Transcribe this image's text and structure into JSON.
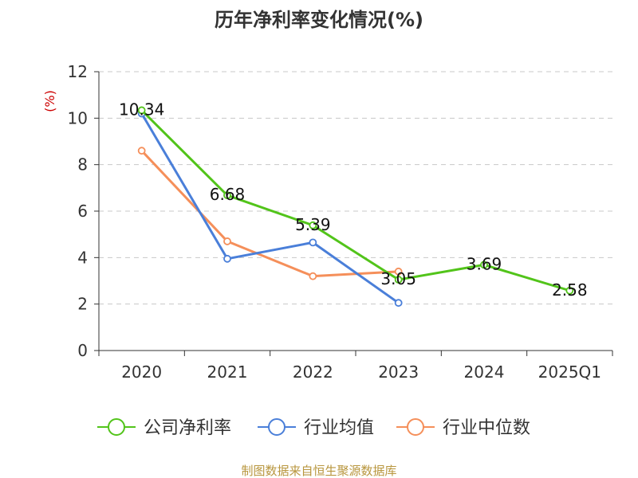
{
  "chart_data": {
    "type": "line",
    "title": "历年净利率变化情况(%)",
    "ylabel": "(%)",
    "xlabel": "",
    "categories": [
      "2020",
      "2021",
      "2022",
      "2023",
      "2024",
      "2025Q1"
    ],
    "ylim": [
      0,
      12
    ],
    "yticks": [
      0,
      2,
      4,
      6,
      8,
      10,
      12
    ],
    "grid": true,
    "legend_position": "bottom",
    "series": [
      {
        "name": "公司净利率",
        "color": "#52c41a",
        "values": [
          10.34,
          6.68,
          5.39,
          3.05,
          3.69,
          2.58
        ],
        "labels": [
          "10.34",
          "6.68",
          "5.39",
          "3.05",
          "3.69",
          "2.58"
        ]
      },
      {
        "name": "行业均值",
        "color": "#4a7fd9",
        "values": [
          10.2,
          3.95,
          4.65,
          2.05,
          null,
          null
        ]
      },
      {
        "name": "行业中位数",
        "color": "#f58f5a",
        "values": [
          8.6,
          4.7,
          3.2,
          3.4,
          null,
          null
        ]
      }
    ]
  },
  "source": "制图数据来自恒生聚源数据库"
}
